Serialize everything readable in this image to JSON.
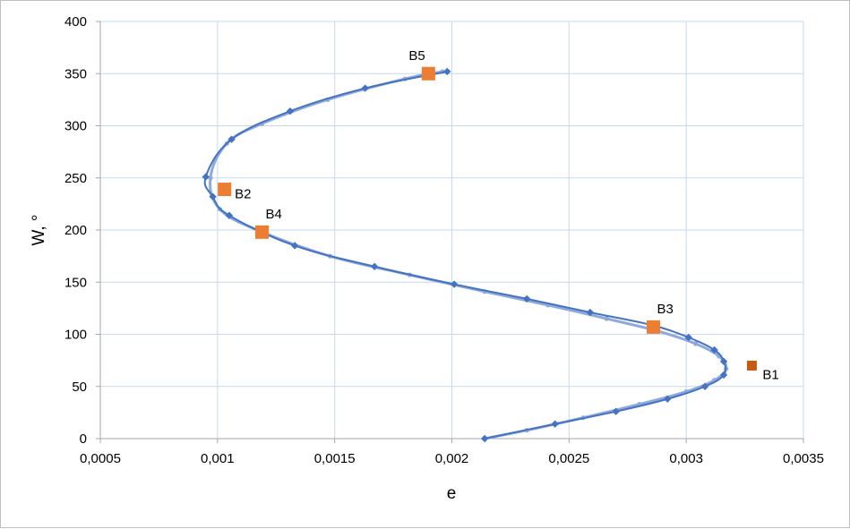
{
  "chart_data": {
    "type": "scatter",
    "xlabel": "e",
    "ylabel": "W, °",
    "xlim": [
      0.0005,
      0.0035
    ],
    "ylim": [
      0,
      400
    ],
    "x_ticks": [
      0.0005,
      0.001,
      0.0015,
      0.002,
      0.0025,
      0.003,
      0.0035
    ],
    "x_tick_labels": [
      "0,0005",
      "0,001",
      "0,0015",
      "0,002",
      "0,0025",
      "0,003",
      "0,0035"
    ],
    "y_ticks": [
      0,
      50,
      100,
      150,
      200,
      250,
      300,
      350,
      400
    ],
    "y_tick_labels": [
      "0",
      "50",
      "100",
      "150",
      "200",
      "250",
      "300",
      "350",
      "400"
    ],
    "grid": true,
    "legend": "none",
    "colors": {
      "dark_series": "#4472c4",
      "light_series": "#8eaadb",
      "points_orange": "#ed7d31",
      "point_b1": "#c55a11",
      "grid": "#c6d9f1",
      "axis": "#a6a6a6"
    },
    "series": [
      {
        "style": "dark",
        "x": [
          0.00214,
          0.00244,
          0.0027,
          0.00292,
          0.00308,
          0.00316,
          0.00316,
          0.00312,
          0.00301,
          0.00285,
          0.00259,
          0.00232,
          0.00201,
          0.00167,
          0.00133,
          0.00105,
          0.00098,
          0.00095,
          0.00106,
          0.00131,
          0.00163,
          0.00198
        ],
        "y": [
          0,
          14,
          26,
          38,
          50,
          61,
          74,
          85,
          97,
          109,
          121,
          134,
          148,
          165,
          185,
          214,
          232,
          251,
          287,
          314,
          336,
          352
        ]
      },
      {
        "style": "light",
        "x": [
          0.00214,
          0.00232,
          0.00256,
          0.0028,
          0.003,
          0.00312,
          0.00317,
          0.00314,
          0.00304,
          0.00288,
          0.00266,
          0.00241,
          0.00214,
          0.00182,
          0.00148,
          0.00118,
          0.00101,
          0.00097,
          0.00104,
          0.00119,
          0.00147,
          0.0018,
          0.00196
        ],
        "y": [
          0,
          8,
          20,
          33,
          45,
          56,
          67,
          79,
          91,
          103,
          115,
          128,
          141,
          157,
          175,
          199,
          220,
          250,
          283,
          302,
          325,
          345,
          352
        ]
      }
    ],
    "labeled_points": [
      {
        "label": "B1",
        "x": 0.00328,
        "y": 70,
        "color": "#c55a11",
        "size": "small",
        "label_pos": "right"
      },
      {
        "label": "B2",
        "x": 0.00103,
        "y": 239,
        "color": "#ed7d31",
        "size": "large",
        "label_pos": "right"
      },
      {
        "label": "B3",
        "x": 0.00286,
        "y": 107,
        "color": "#ed7d31",
        "size": "large",
        "label_pos": "top"
      },
      {
        "label": "B4",
        "x": 0.00119,
        "y": 198,
        "color": "#ed7d31",
        "size": "large",
        "label_pos": "top"
      },
      {
        "label": "B5",
        "x": 0.0019,
        "y": 350,
        "color": "#ed7d31",
        "size": "large",
        "label_pos": "top"
      }
    ]
  }
}
